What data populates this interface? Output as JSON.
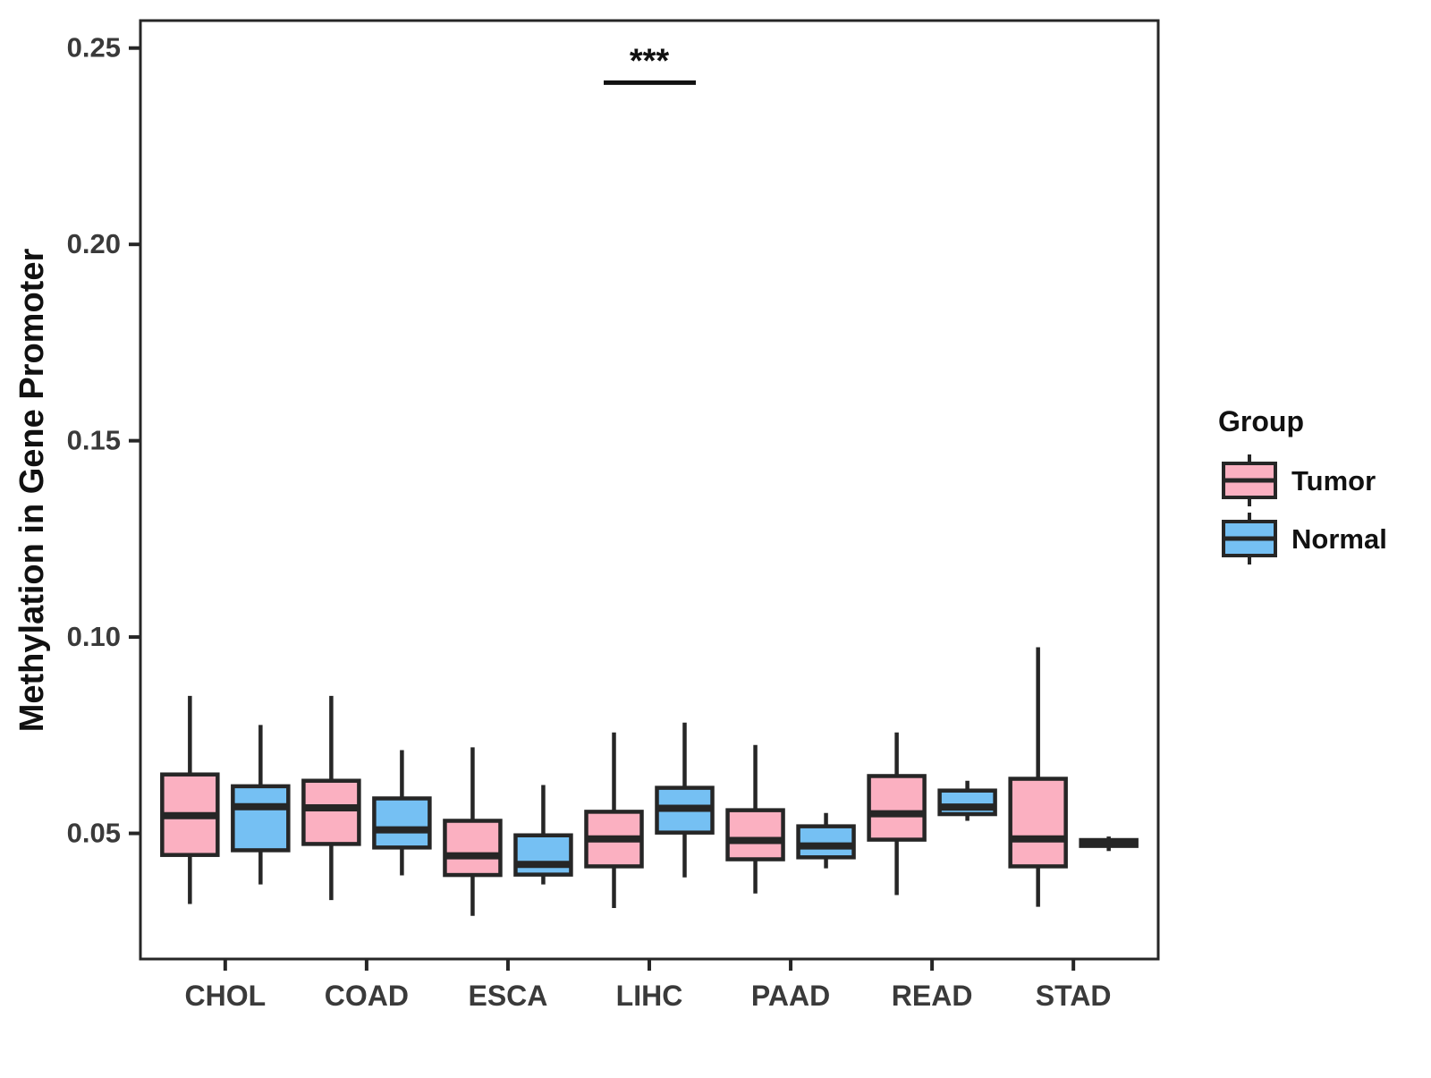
{
  "figure": {
    "background": "#FFFFFF"
  },
  "y_axis": {
    "label": "Methylation in Gene Promoter",
    "ticks": [
      {
        "value": 0.05,
        "label": "0.05"
      },
      {
        "value": 0.1,
        "label": "0.10"
      },
      {
        "value": 0.15,
        "label": "0.15"
      },
      {
        "value": 0.2,
        "label": "0.20"
      },
      {
        "value": 0.25,
        "label": "0.25"
      }
    ]
  },
  "legend": {
    "title": "Group",
    "items": [
      {
        "label": "Tumor",
        "color": "#FBB0C1"
      },
      {
        "label": "Normal",
        "color": "#75C0F3"
      }
    ]
  },
  "chart_data": {
    "type": "boxplot",
    "title": "",
    "xlabel": "",
    "ylabel": "Methylation in Gene Promoter",
    "categories": [
      "CHOL",
      "COAD",
      "ESCA",
      "LIHC",
      "PAAD",
      "READ",
      "STAD"
    ],
    "ylim": [
      0.018,
      0.257
    ],
    "ytick_values": [
      0.05,
      0.1,
      0.15,
      0.2,
      0.25
    ],
    "grid": "off",
    "legend_position": "right",
    "stroke_color": "#262626",
    "tick_label_color": "#3a3a3a",
    "series": [
      {
        "name": "Tumor",
        "color": "#FBB0C1",
        "boxes": [
          {
            "whisker_low": 0.032,
            "q1": 0.0445,
            "median": 0.0545,
            "q3": 0.065,
            "whisker_high": 0.085
          },
          {
            "whisker_low": 0.033,
            "q1": 0.0473,
            "median": 0.0565,
            "q3": 0.0634,
            "whisker_high": 0.085
          },
          {
            "whisker_low": 0.029,
            "q1": 0.0394,
            "median": 0.0443,
            "q3": 0.0532,
            "whisker_high": 0.0719
          },
          {
            "whisker_low": 0.031,
            "q1": 0.0416,
            "median": 0.0486,
            "q3": 0.0555,
            "whisker_high": 0.0757
          },
          {
            "whisker_low": 0.0347,
            "q1": 0.0434,
            "median": 0.0482,
            "q3": 0.0559,
            "whisker_high": 0.0725
          },
          {
            "whisker_low": 0.0343,
            "q1": 0.0484,
            "median": 0.055,
            "q3": 0.0646,
            "whisker_high": 0.0757
          },
          {
            "whisker_low": 0.0313,
            "q1": 0.0416,
            "median": 0.0486,
            "q3": 0.0639,
            "whisker_high": 0.0974
          }
        ]
      },
      {
        "name": "Normal",
        "color": "#75C0F3",
        "boxes": [
          {
            "whisker_low": 0.037,
            "q1": 0.0457,
            "median": 0.0568,
            "q3": 0.062,
            "whisker_high": 0.0776
          },
          {
            "whisker_low": 0.0393,
            "q1": 0.0464,
            "median": 0.0509,
            "q3": 0.0589,
            "whisker_high": 0.0712
          },
          {
            "whisker_low": 0.037,
            "q1": 0.0395,
            "median": 0.0421,
            "q3": 0.0495,
            "whisker_high": 0.0623
          },
          {
            "whisker_low": 0.0388,
            "q1": 0.0502,
            "median": 0.0564,
            "q3": 0.0616,
            "whisker_high": 0.0782
          },
          {
            "whisker_low": 0.0411,
            "q1": 0.0439,
            "median": 0.0468,
            "q3": 0.0518,
            "whisker_high": 0.0552
          },
          {
            "whisker_low": 0.0532,
            "q1": 0.0549,
            "median": 0.0567,
            "q3": 0.0609,
            "whisker_high": 0.0634
          },
          {
            "whisker_low": 0.0455,
            "q1": 0.0468,
            "median": 0.0476,
            "q3": 0.0483,
            "whisker_high": 0.0492
          }
        ]
      }
    ],
    "significance": {
      "category": "LIHC",
      "label": "***",
      "bar_y_value": 0.2412
    }
  }
}
